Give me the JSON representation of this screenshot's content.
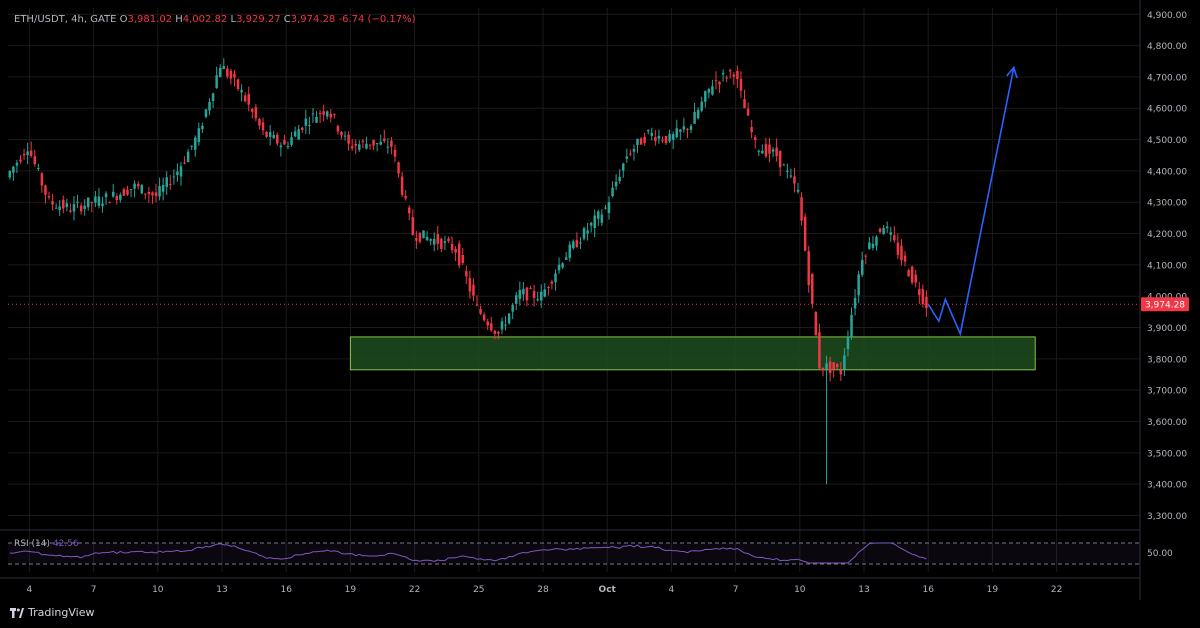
{
  "legend": {
    "symbol": "ETH/USDT, 4h, GATE",
    "open_label": "O",
    "open": "3,981.02",
    "high_label": "H",
    "high": "4,002.82",
    "low_label": "L",
    "low": "3,929.27",
    "close_label": "C",
    "close": "3,974.28",
    "change": "-6.74 (−0.17%)"
  },
  "rsi": {
    "label": "RSI (14)",
    "value": "42.56",
    "level_label": "50.00"
  },
  "price_badge": "3,974.28",
  "footer": {
    "brand": "TradingView"
  },
  "colors": {
    "up": "#26a69a",
    "down": "#f23645",
    "background": "#000000",
    "grid": "#1a1a1a",
    "zone_fill": "#1e4d1e",
    "zone_border": "#8bc34a",
    "projection": "#2962ff",
    "rsi_line": "#7e57c2"
  },
  "chart_data": {
    "type": "candlestick",
    "title": "ETH/USDT, 4h, GATE",
    "y_axis": {
      "ticks": [
        "3,300.00",
        "3,400.00",
        "3,500.00",
        "3,600.00",
        "3,700.00",
        "3,800.00",
        "3,900.00",
        "4,000.00",
        "4,100.00",
        "4,200.00",
        "4,300.00",
        "4,400.00",
        "4,500.00",
        "4,600.00",
        "4,700.00",
        "4,800.00",
        "4,900.00"
      ],
      "range": [
        3260,
        4920
      ]
    },
    "x_axis": {
      "ticks": [
        "4",
        "7",
        "10",
        "13",
        "16",
        "19",
        "22",
        "25",
        "28",
        "Oct",
        "4",
        "7",
        "10",
        "13",
        "16",
        "19",
        "22"
      ],
      "range_days": "Sep 3 – Oct 24"
    },
    "daily_path": [
      [
        "Sep 3",
        4380
      ],
      [
        "Sep 4",
        4480
      ],
      [
        "Sep 5",
        4300
      ],
      [
        "Sep 6",
        4280
      ],
      [
        "Sep 7",
        4300
      ],
      [
        "Sep 8",
        4320
      ],
      [
        "Sep 9",
        4350
      ],
      [
        "Sep 10",
        4320
      ],
      [
        "Sep 11",
        4400
      ],
      [
        "Sep 12",
        4520
      ],
      [
        "Sep 13",
        4740
      ],
      [
        "Sep 14",
        4650
      ],
      [
        "Sep 15",
        4520
      ],
      [
        "Sep 16",
        4480
      ],
      [
        "Sep 17",
        4560
      ],
      [
        "Sep 18",
        4600
      ],
      [
        "Sep 19",
        4480
      ],
      [
        "Sep 20",
        4490
      ],
      [
        "Sep 21",
        4480
      ],
      [
        "Sep 22",
        4200
      ],
      [
        "Sep 23",
        4180
      ],
      [
        "Sep 24",
        4150
      ],
      [
        "Sep 25",
        3960
      ],
      [
        "Sep 26",
        3880
      ],
      [
        "Sep 27",
        4010
      ],
      [
        "Sep 28",
        4000
      ],
      [
        "Sep 29",
        4120
      ],
      [
        "Sep 30",
        4200
      ],
      [
        "Oct 1",
        4280
      ],
      [
        "Oct 2",
        4450
      ],
      [
        "Oct 3",
        4520
      ],
      [
        "Oct 4",
        4500
      ],
      [
        "Oct 5",
        4550
      ],
      [
        "Oct 6",
        4680
      ],
      [
        "Oct 7",
        4720
      ],
      [
        "Oct 8",
        4480
      ],
      [
        "Oct 9",
        4450
      ],
      [
        "Oct 10",
        4330
      ],
      [
        "Oct 11",
        3780
      ],
      [
        "Oct 12",
        3760
      ],
      [
        "Oct 13",
        4130
      ],
      [
        "Oct 14",
        4230
      ],
      [
        "Oct 15",
        4100
      ],
      [
        "Oct 16",
        3974
      ]
    ],
    "flash_crash_low": [
      "Oct 11",
      3400
    ],
    "demand_zone": {
      "from": "Sep 19",
      "to": "Oct 21",
      "low": 3765,
      "high": 3870
    },
    "projection": [
      [
        "Oct 16",
        3974
      ],
      [
        "Oct 16.5",
        3920
      ],
      [
        "Oct 16.8",
        3990
      ],
      [
        "Oct 17.5",
        3880
      ],
      [
        "Oct 20",
        4730
      ]
    ],
    "last_price": 3974.28,
    "rsi_level": 50
  }
}
